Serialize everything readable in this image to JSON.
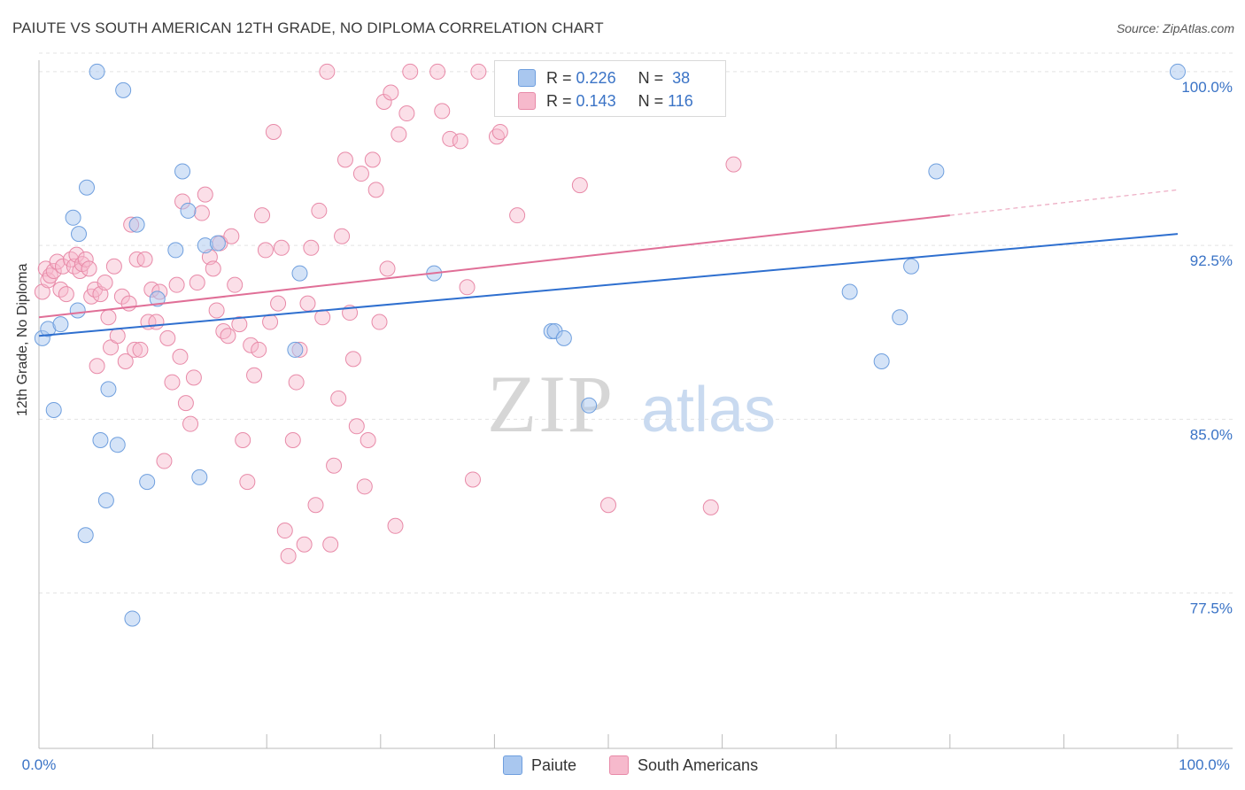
{
  "title": "PAIUTE VS SOUTH AMERICAN 12TH GRADE, NO DIPLOMA CORRELATION CHART",
  "source": "Source: ZipAtlas.com",
  "watermark": {
    "zip": "ZIP",
    "atlas": "atlas"
  },
  "legend_stats": {
    "r_label": "R =",
    "n_label": "N =",
    "paiute": {
      "r": "0.226",
      "n": "38"
    },
    "south_americans": {
      "r": "0.143",
      "n": "116"
    }
  },
  "colors": {
    "paiute_fill": "#a9c7ef",
    "paiute_stroke": "#6f9fde",
    "paiute_line": "#2e6fcf",
    "sa_fill": "#f6b9cc",
    "sa_stroke": "#e88aa8",
    "sa_line": "#e06f97",
    "axis_label": "#3a73c6",
    "grid": "#e3e3e3"
  },
  "chart_data": {
    "type": "scatter",
    "title": "PAIUTE VS SOUTH AMERICAN 12TH GRADE, NO DIPLOMA CORRELATION CHART",
    "xlabel": "",
    "ylabel": "12th Grade, No Diploma",
    "xlim": [
      0,
      100
    ],
    "ylim": [
      70.8,
      100.8
    ],
    "x_tick_labels": [
      "0.0%",
      "100.0%"
    ],
    "y_ticks": [
      77.5,
      85.0,
      92.5,
      100.0
    ],
    "y_tick_labels": [
      "77.5%",
      "85.0%",
      "92.5%",
      "100.0%"
    ],
    "grid": "horizontal dashed",
    "legend_position": "top-center",
    "series": [
      {
        "name": "Paiute",
        "trend": [
          [
            0,
            88.6
          ],
          [
            100,
            93.0
          ]
        ],
        "points": [
          [
            0.3,
            88.5
          ],
          [
            0.8,
            88.9
          ],
          [
            1.9,
            89.1
          ],
          [
            1.3,
            85.4
          ],
          [
            3.0,
            93.7
          ],
          [
            3.4,
            89.7
          ],
          [
            3.5,
            93.0
          ],
          [
            4.1,
            80.0
          ],
          [
            4.2,
            95.0
          ],
          [
            5.1,
            100.0
          ],
          [
            5.4,
            84.1
          ],
          [
            5.9,
            81.5
          ],
          [
            6.1,
            86.3
          ],
          [
            6.9,
            83.9
          ],
          [
            7.4,
            99.2
          ],
          [
            8.2,
            76.4
          ],
          [
            8.6,
            93.4
          ],
          [
            9.5,
            82.3
          ],
          [
            10.4,
            90.2
          ],
          [
            12.0,
            92.3
          ],
          [
            12.6,
            95.7
          ],
          [
            13.1,
            94.0
          ],
          [
            14.1,
            82.5
          ],
          [
            14.6,
            92.5
          ],
          [
            15.7,
            92.6
          ],
          [
            22.5,
            88.0
          ],
          [
            22.9,
            91.3
          ],
          [
            34.7,
            91.3
          ],
          [
            45.0,
            88.8
          ],
          [
            45.3,
            88.8
          ],
          [
            46.1,
            88.5
          ],
          [
            48.3,
            85.6
          ],
          [
            71.2,
            90.5
          ],
          [
            74.0,
            87.5
          ],
          [
            75.6,
            89.4
          ],
          [
            76.6,
            91.6
          ],
          [
            78.8,
            95.7
          ],
          [
            100.0,
            100.0
          ]
        ]
      },
      {
        "name": "South Americans",
        "trend": [
          [
            0,
            89.4
          ],
          [
            80,
            93.8
          ]
        ],
        "trend_dashed_to": [
          100,
          94.9
        ],
        "points": [
          [
            0.3,
            90.5
          ],
          [
            0.6,
            91.5
          ],
          [
            0.8,
            91.0
          ],
          [
            1.0,
            91.2
          ],
          [
            1.3,
            91.4
          ],
          [
            1.6,
            91.8
          ],
          [
            1.9,
            90.6
          ],
          [
            2.1,
            91.6
          ],
          [
            2.4,
            90.4
          ],
          [
            2.8,
            91.9
          ],
          [
            3.1,
            91.6
          ],
          [
            3.3,
            92.1
          ],
          [
            3.6,
            91.4
          ],
          [
            3.8,
            91.7
          ],
          [
            4.1,
            91.9
          ],
          [
            4.4,
            91.5
          ],
          [
            4.6,
            90.3
          ],
          [
            4.9,
            90.6
          ],
          [
            5.1,
            87.3
          ],
          [
            5.4,
            90.4
          ],
          [
            5.8,
            90.9
          ],
          [
            6.1,
            89.4
          ],
          [
            6.3,
            88.1
          ],
          [
            6.6,
            91.6
          ],
          [
            6.9,
            88.6
          ],
          [
            7.3,
            90.3
          ],
          [
            7.6,
            87.5
          ],
          [
            7.9,
            90.0
          ],
          [
            8.1,
            93.4
          ],
          [
            8.4,
            88.0
          ],
          [
            8.6,
            91.9
          ],
          [
            8.9,
            88.0
          ],
          [
            9.3,
            91.9
          ],
          [
            9.6,
            89.2
          ],
          [
            9.9,
            90.6
          ],
          [
            10.3,
            89.2
          ],
          [
            10.6,
            90.5
          ],
          [
            11.0,
            83.2
          ],
          [
            11.3,
            88.5
          ],
          [
            11.7,
            86.6
          ],
          [
            12.1,
            90.8
          ],
          [
            12.4,
            87.7
          ],
          [
            12.6,
            94.4
          ],
          [
            12.9,
            85.7
          ],
          [
            13.3,
            84.8
          ],
          [
            13.6,
            86.8
          ],
          [
            13.9,
            90.9
          ],
          [
            14.3,
            93.9
          ],
          [
            14.6,
            94.7
          ],
          [
            15.0,
            92.0
          ],
          [
            15.3,
            91.5
          ],
          [
            15.6,
            89.7
          ],
          [
            15.9,
            92.6
          ],
          [
            16.2,
            88.8
          ],
          [
            16.6,
            88.6
          ],
          [
            16.9,
            92.9
          ],
          [
            17.2,
            90.8
          ],
          [
            17.6,
            89.1
          ],
          [
            17.9,
            84.1
          ],
          [
            18.3,
            82.3
          ],
          [
            18.6,
            88.2
          ],
          [
            18.9,
            86.9
          ],
          [
            19.3,
            88.0
          ],
          [
            19.6,
            93.8
          ],
          [
            19.9,
            92.3
          ],
          [
            20.3,
            89.2
          ],
          [
            20.6,
            97.4
          ],
          [
            21.0,
            90.0
          ],
          [
            21.3,
            92.4
          ],
          [
            21.6,
            80.2
          ],
          [
            21.9,
            79.1
          ],
          [
            22.3,
            84.1
          ],
          [
            22.6,
            86.6
          ],
          [
            22.9,
            88.0
          ],
          [
            23.3,
            79.6
          ],
          [
            23.6,
            90.0
          ],
          [
            23.9,
            92.4
          ],
          [
            24.3,
            81.3
          ],
          [
            24.6,
            94.0
          ],
          [
            24.9,
            89.4
          ],
          [
            25.3,
            100.0
          ],
          [
            25.6,
            79.6
          ],
          [
            25.9,
            83.0
          ],
          [
            26.3,
            85.9
          ],
          [
            26.6,
            92.9
          ],
          [
            26.9,
            96.2
          ],
          [
            27.3,
            89.6
          ],
          [
            27.6,
            87.6
          ],
          [
            27.9,
            84.7
          ],
          [
            28.3,
            95.6
          ],
          [
            28.6,
            82.1
          ],
          [
            28.9,
            84.1
          ],
          [
            29.3,
            96.2
          ],
          [
            29.6,
            94.9
          ],
          [
            29.9,
            89.2
          ],
          [
            30.3,
            98.7
          ],
          [
            30.6,
            91.5
          ],
          [
            30.9,
            99.1
          ],
          [
            31.3,
            80.4
          ],
          [
            31.6,
            97.3
          ],
          [
            32.3,
            98.2
          ],
          [
            32.6,
            100.0
          ],
          [
            35.0,
            100.0
          ],
          [
            35.4,
            98.3
          ],
          [
            36.1,
            97.1
          ],
          [
            37.0,
            97.0
          ],
          [
            37.6,
            90.7
          ],
          [
            38.1,
            82.4
          ],
          [
            38.6,
            100.0
          ],
          [
            40.2,
            97.2
          ],
          [
            40.5,
            97.4
          ],
          [
            42.0,
            93.8
          ],
          [
            47.5,
            95.1
          ],
          [
            50.0,
            81.3
          ],
          [
            59.0,
            81.2
          ],
          [
            61.0,
            96.0
          ]
        ]
      }
    ]
  },
  "y_axis_title": "12th Grade, No Diploma",
  "bottom_legend": {
    "paiute": "Paiute",
    "south_americans": "South Americans"
  }
}
